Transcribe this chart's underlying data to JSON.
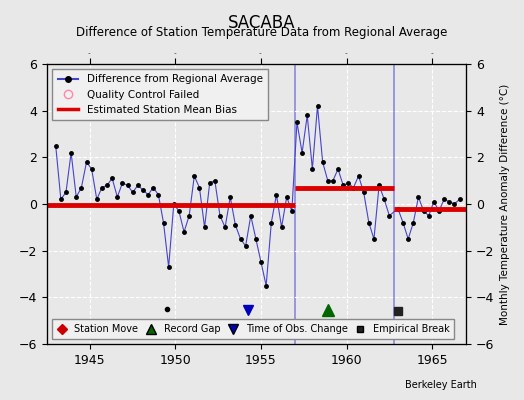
{
  "title": "SACABA",
  "subtitle": "Difference of Station Temperature Data from Regional Average",
  "ylabel": "Monthly Temperature Anomaly Difference (°C)",
  "background_color": "#e8e8e8",
  "plot_bg_color": "#e8e8e8",
  "xlim": [
    1942.5,
    1967.0
  ],
  "ylim": [
    -6,
    6
  ],
  "yticks": [
    -6,
    -4,
    -2,
    0,
    2,
    4,
    6
  ],
  "xticks": [
    1945,
    1950,
    1955,
    1960,
    1965
  ],
  "grid_color": "#ffffff",
  "line_color": "#4444cc",
  "dot_color": "#000000",
  "bias_color": "#dd0000",
  "segment1_bias": -0.05,
  "segment2_bias": 0.7,
  "segment3_bias": -0.2,
  "seg1_xstart": 1942.5,
  "seg1_xend": 1957.0,
  "seg2_xstart": 1957.0,
  "seg2_xend": 1962.75,
  "seg3_xstart": 1962.75,
  "seg3_xend": 1967.0,
  "vertical_line_x": [
    1957.0,
    1962.75
  ],
  "vertical_line_color": "#8888dd",
  "obs_change_x": 1954.25,
  "obs_change_y": -4.55,
  "record_gap_x": 1958.9,
  "record_gap_y": -4.55,
  "empirical_break_x": 1963.0,
  "empirical_break_y": -4.6,
  "isolated_dot_x": 1949.5,
  "isolated_dot_y": -4.5,
  "data_x": [
    1943.0,
    1943.3,
    1943.6,
    1943.9,
    1944.2,
    1944.5,
    1944.8,
    1945.1,
    1945.4,
    1945.7,
    1946.0,
    1946.3,
    1946.6,
    1946.9,
    1947.2,
    1947.5,
    1947.8,
    1948.1,
    1948.4,
    1948.7,
    1949.0,
    1949.3,
    1949.6,
    1949.9,
    1950.2,
    1950.5,
    1950.8,
    1951.1,
    1951.4,
    1951.7,
    1952.0,
    1952.3,
    1952.6,
    1952.9,
    1953.2,
    1953.5,
    1953.8,
    1954.1,
    1954.4,
    1954.7,
    1955.0,
    1955.3,
    1955.6,
    1955.9,
    1956.2,
    1956.5,
    1956.8,
    1957.1,
    1957.4,
    1957.7,
    1958.0,
    1958.3,
    1958.6,
    1958.9,
    1959.2,
    1959.5,
    1959.8,
    1960.1,
    1960.4,
    1960.7,
    1961.0,
    1961.3,
    1961.6,
    1961.9,
    1962.2,
    1962.5,
    1963.0,
    1963.3,
    1963.6,
    1963.9,
    1964.2,
    1964.5,
    1964.8,
    1965.1,
    1965.4,
    1965.7,
    1966.0,
    1966.3,
    1966.6
  ],
  "data_y": [
    2.5,
    0.2,
    0.5,
    2.2,
    0.3,
    0.7,
    1.8,
    1.5,
    0.2,
    0.7,
    0.8,
    1.1,
    0.3,
    0.9,
    0.8,
    0.5,
    0.8,
    0.6,
    0.4,
    0.7,
    0.4,
    -0.8,
    -2.7,
    0.0,
    -0.3,
    -1.2,
    -0.5,
    1.2,
    0.7,
    -1.0,
    0.9,
    1.0,
    -0.5,
    -1.0,
    0.3,
    -0.9,
    -1.5,
    -1.8,
    -0.5,
    -1.5,
    -2.5,
    -3.5,
    -0.8,
    0.4,
    -1.0,
    0.3,
    -0.3,
    3.5,
    2.2,
    3.8,
    1.5,
    4.2,
    1.8,
    1.0,
    1.0,
    1.5,
    0.8,
    0.9,
    0.7,
    1.2,
    0.5,
    -0.8,
    -1.5,
    0.8,
    0.2,
    -0.5,
    -0.2,
    -0.8,
    -1.5,
    -0.8,
    0.3,
    -0.3,
    -0.5,
    0.1,
    -0.3,
    0.2,
    0.1,
    0.0,
    0.2
  ]
}
